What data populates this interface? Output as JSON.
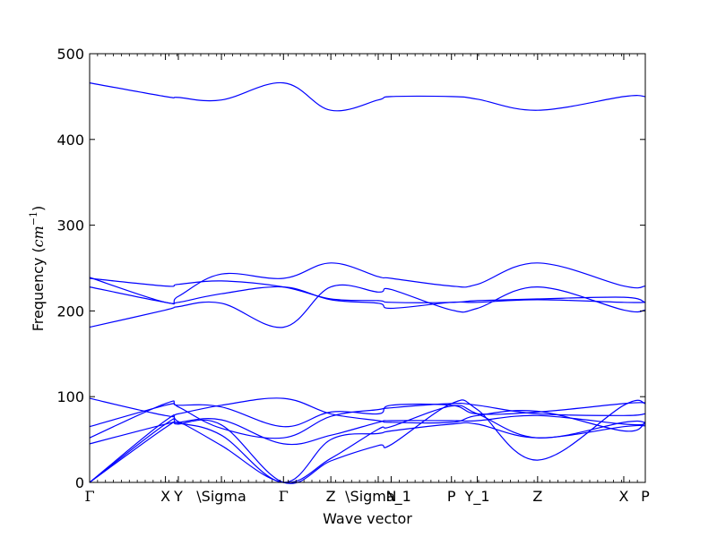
{
  "chart_data": {
    "type": "line",
    "title": "",
    "xlabel": "Wave vector",
    "ylabel": "Frequency (",
    "ylabel_math": "cm",
    "ylabel_exp": "−1",
    "ylabel_close": ")",
    "ylim": [
      0,
      500
    ],
    "yticks": [
      0,
      100,
      200,
      300,
      400,
      500
    ],
    "grid": false,
    "line_color": "#0000ff",
    "xlim": [
      0,
      6.45
    ],
    "special_points": [
      {
        "label": "Γ",
        "x": 0.0
      },
      {
        "label": "X",
        "x": 0.88
      },
      {
        "label": "Y",
        "x": 1.03
      },
      {
        "label": "\\Sigma",
        "x": 1.53
      },
      {
        "label": "Γ",
        "x": 2.25
      },
      {
        "label": "Z",
        "x": 2.8
      },
      {
        "label": "\\Sigma_1",
        "x": 3.35
      },
      {
        "label": "N",
        "x": 3.5
      },
      {
        "label": "P",
        "x": 4.2
      },
      {
        "label": "Y_1",
        "x": 4.5
      },
      {
        "label": "Z",
        "x": 5.2
      },
      {
        "label": "X",
        "x": 6.2
      },
      {
        "label": "P",
        "x": 6.45
      }
    ],
    "series": [
      {
        "x": [
          0,
          0.88,
          1.03,
          1.53,
          2.25,
          2.8,
          3.35,
          3.5,
          4.2,
          4.5,
          5.2,
          6.2,
          6.45
        ],
        "values": [
          0,
          68,
          69,
          55,
          0,
          50,
          57,
          60,
          68,
          68,
          52,
          65,
          66
        ]
      },
      {
        "x": [
          0,
          0.88,
          1.03,
          1.53,
          2.25,
          2.8,
          3.35,
          3.5,
          4.2,
          4.5,
          5.2,
          6.2,
          6.45
        ],
        "values": [
          0,
          64,
          68,
          67,
          0,
          25,
          43,
          44,
          92,
          85,
          26,
          90,
          92
        ]
      },
      {
        "x": [
          0,
          0.88,
          1.03,
          1.53,
          2.25,
          2.8,
          3.35,
          3.5,
          4.2,
          4.5,
          5.2,
          6.2,
          6.45
        ],
        "values": [
          0,
          72,
          71,
          43,
          0,
          28,
          62,
          65,
          89,
          80,
          52,
          70,
          70
        ]
      },
      {
        "x": [
          0,
          0.88,
          1.03,
          1.53,
          2.25,
          2.8,
          3.35,
          3.5,
          4.2,
          4.5,
          5.2,
          6.2,
          6.45
        ],
        "values": [
          45,
          68,
          70,
          73,
          45,
          55,
          70,
          72,
          72,
          72,
          78,
          68,
          68
        ]
      },
      {
        "x": [
          0,
          0.88,
          1.03,
          1.53,
          2.25,
          2.8,
          3.35,
          3.5,
          4.2,
          4.5,
          5.2,
          6.2,
          6.45
        ],
        "values": [
          52,
          92,
          88,
          63,
          52,
          77,
          85,
          87,
          92,
          90,
          80,
          78,
          80
        ]
      },
      {
        "x": [
          0,
          0.88,
          1.03,
          1.53,
          2.25,
          2.8,
          3.35,
          3.5,
          4.2,
          4.5,
          5.2,
          6.2,
          6.45
        ],
        "values": [
          65,
          90,
          90,
          88,
          65,
          82,
          80,
          90,
          90,
          80,
          82,
          92,
          93
        ]
      },
      {
        "x": [
          0,
          0.88,
          1.03,
          1.53,
          2.25,
          2.8,
          3.35,
          3.5,
          4.2,
          4.5,
          5.2,
          6.2,
          6.45
        ],
        "values": [
          98,
          78,
          80,
          90,
          98,
          80,
          72,
          70,
          70,
          78,
          83,
          60,
          70
        ]
      },
      {
        "x": [
          0,
          0.88,
          1.03,
          1.53,
          2.25,
          2.8,
          3.35,
          3.5,
          4.2,
          4.5,
          5.2,
          6.2,
          6.45
        ],
        "values": [
          181,
          201,
          205,
          209,
          181,
          228,
          222,
          225,
          201,
          203,
          228,
          201,
          201
        ]
      },
      {
        "x": [
          0,
          0.88,
          1.03,
          1.53,
          2.25,
          2.8,
          3.35,
          3.5,
          4.2,
          4.5,
          5.2,
          6.2,
          6.45
        ],
        "values": [
          228,
          210,
          210,
          220,
          228,
          213,
          209,
          203,
          210,
          210,
          213,
          210,
          210
        ]
      },
      {
        "x": [
          0,
          0.88,
          1.03,
          1.53,
          2.25,
          2.8,
          3.35,
          3.5,
          4.2,
          4.5,
          5.2,
          6.2,
          6.45
        ],
        "values": [
          238,
          229,
          231,
          235,
          228,
          214,
          212,
          210,
          210,
          212,
          214,
          216,
          210
        ]
      },
      {
        "x": [
          0,
          0.88,
          1.03,
          1.53,
          2.25,
          2.8,
          3.35,
          3.5,
          4.2,
          4.5,
          5.2,
          6.2,
          6.45
        ],
        "values": [
          239,
          210,
          217,
          243,
          238,
          256,
          240,
          238,
          229,
          231,
          256,
          229,
          229
        ]
      },
      {
        "x": [
          0,
          0.88,
          1.03,
          1.53,
          2.25,
          2.8,
          3.35,
          3.5,
          4.2,
          4.5,
          5.2,
          6.2,
          6.45
        ],
        "values": [
          466,
          450,
          449,
          446,
          466,
          434,
          446,
          450,
          450,
          447,
          434,
          450,
          450
        ]
      }
    ]
  }
}
